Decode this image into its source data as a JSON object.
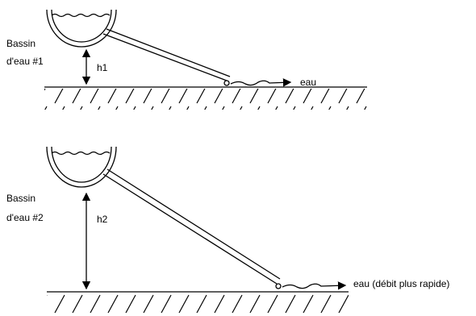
{
  "panels": [
    {
      "basin_label": [
        "Bassin",
        "d'eau #1"
      ],
      "height_label": "h1",
      "outlet_label": "eau"
    },
    {
      "basin_label": [
        "Bassin",
        "d'eau #2"
      ],
      "height_label": "h2",
      "outlet_label": "eau (débit plus rapide)"
    }
  ]
}
